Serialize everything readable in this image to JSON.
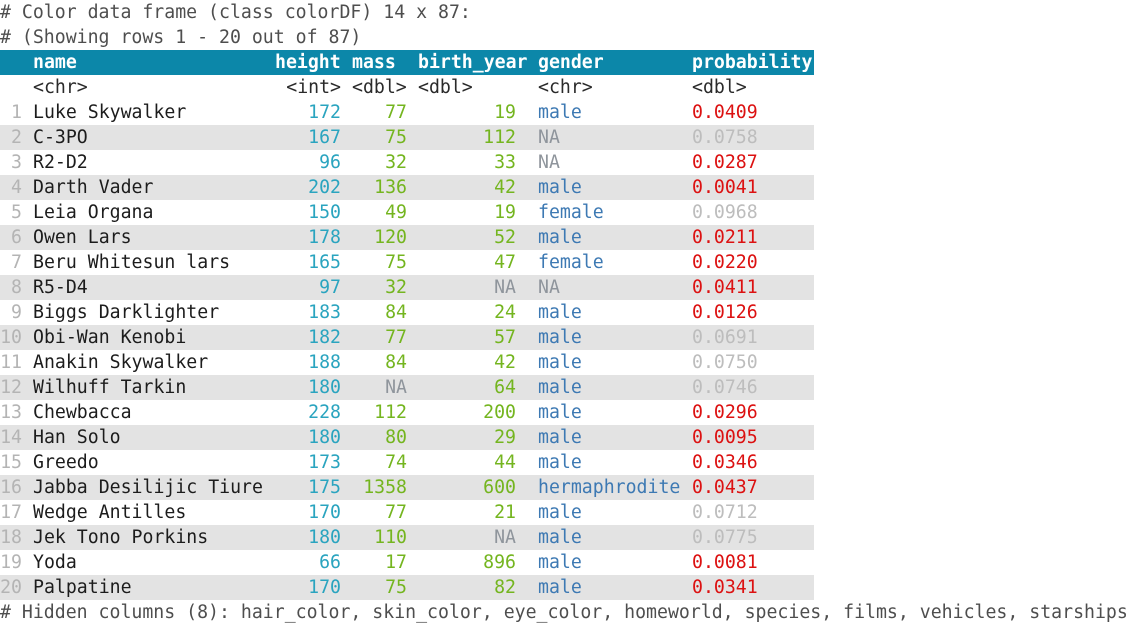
{
  "meta": {
    "line1": "# Color data frame (class colorDF) 14 x 87:",
    "line2": "# (Showing rows 1 - 20 out of 87)",
    "footer": "# Hidden columns (8): hair_color, skin_color, eye_color, homeworld, species, films, vehicles, starships"
  },
  "colors": {
    "header_bg": "#0c87a9",
    "int_teal": "#2aa4bf",
    "dbl_green": "#74b51f",
    "chr_blue": "#3d79b3",
    "sig_red": "#dc1111",
    "nonsig_gray": "#bdbdbd",
    "na_gray": "#8f959c",
    "rownum": "#b4b4b4",
    "stripe": "#e3e3e3",
    "comment": "#4e4e4e",
    "text": "#1c1c1c"
  },
  "table": {
    "columns": [
      {
        "key": "num",
        "label": "",
        "type": ""
      },
      {
        "key": "name",
        "label": "name",
        "type": "<chr>"
      },
      {
        "key": "height",
        "label": "height",
        "type": "<int>"
      },
      {
        "key": "mass",
        "label": "mass",
        "type": "<dbl>"
      },
      {
        "key": "birth_year",
        "label": "birth_year",
        "type": "<dbl>"
      },
      {
        "key": "gender",
        "label": "gender",
        "type": "<chr>"
      },
      {
        "key": "probability",
        "label": "probability",
        "type": "<dbl>"
      }
    ],
    "rows": [
      {
        "num": "1",
        "name": "Luke Skywalker",
        "height": "172",
        "mass": "77",
        "birth_year": "19",
        "gender": "male",
        "probability": "0.0409",
        "sig": true
      },
      {
        "num": "2",
        "name": "C-3PO",
        "height": "167",
        "mass": "75",
        "birth_year": "112",
        "gender": "NA",
        "probability": "0.0758",
        "sig": false
      },
      {
        "num": "3",
        "name": "R2-D2",
        "height": "96",
        "mass": "32",
        "birth_year": "33",
        "gender": "NA",
        "probability": "0.0287",
        "sig": true
      },
      {
        "num": "4",
        "name": "Darth Vader",
        "height": "202",
        "mass": "136",
        "birth_year": "42",
        "gender": "male",
        "probability": "0.0041",
        "sig": true
      },
      {
        "num": "5",
        "name": "Leia Organa",
        "height": "150",
        "mass": "49",
        "birth_year": "19",
        "gender": "female",
        "probability": "0.0968",
        "sig": false
      },
      {
        "num": "6",
        "name": "Owen Lars",
        "height": "178",
        "mass": "120",
        "birth_year": "52",
        "gender": "male",
        "probability": "0.0211",
        "sig": true
      },
      {
        "num": "7",
        "name": "Beru Whitesun lars",
        "height": "165",
        "mass": "75",
        "birth_year": "47",
        "gender": "female",
        "probability": "0.0220",
        "sig": true
      },
      {
        "num": "8",
        "name": "R5-D4",
        "height": "97",
        "mass": "32",
        "birth_year": "NA",
        "gender": "NA",
        "probability": "0.0411",
        "sig": true
      },
      {
        "num": "9",
        "name": "Biggs Darklighter",
        "height": "183",
        "mass": "84",
        "birth_year": "24",
        "gender": "male",
        "probability": "0.0126",
        "sig": true
      },
      {
        "num": "10",
        "name": "Obi-Wan Kenobi",
        "height": "182",
        "mass": "77",
        "birth_year": "57",
        "gender": "male",
        "probability": "0.0691",
        "sig": false
      },
      {
        "num": "11",
        "name": "Anakin Skywalker",
        "height": "188",
        "mass": "84",
        "birth_year": "42",
        "gender": "male",
        "probability": "0.0750",
        "sig": false
      },
      {
        "num": "12",
        "name": "Wilhuff Tarkin",
        "height": "180",
        "mass": "NA",
        "birth_year": "64",
        "gender": "male",
        "probability": "0.0746",
        "sig": false
      },
      {
        "num": "13",
        "name": "Chewbacca",
        "height": "228",
        "mass": "112",
        "birth_year": "200",
        "gender": "male",
        "probability": "0.0296",
        "sig": true
      },
      {
        "num": "14",
        "name": "Han Solo",
        "height": "180",
        "mass": "80",
        "birth_year": "29",
        "gender": "male",
        "probability": "0.0095",
        "sig": true
      },
      {
        "num": "15",
        "name": "Greedo",
        "height": "173",
        "mass": "74",
        "birth_year": "44",
        "gender": "male",
        "probability": "0.0346",
        "sig": true
      },
      {
        "num": "16",
        "name": "Jabba Desilijic Tiure",
        "height": "175",
        "mass": "1358",
        "birth_year": "600",
        "gender": "hermaphrodite",
        "probability": "0.0437",
        "sig": true
      },
      {
        "num": "17",
        "name": "Wedge Antilles",
        "height": "170",
        "mass": "77",
        "birth_year": "21",
        "gender": "male",
        "probability": "0.0712",
        "sig": false
      },
      {
        "num": "18",
        "name": "Jek Tono Porkins",
        "height": "180",
        "mass": "110",
        "birth_year": "NA",
        "gender": "male",
        "probability": "0.0775",
        "sig": false
      },
      {
        "num": "19",
        "name": "Yoda",
        "height": "66",
        "mass": "17",
        "birth_year": "896",
        "gender": "male",
        "probability": "0.0081",
        "sig": true
      },
      {
        "num": "20",
        "name": "Palpatine",
        "height": "170",
        "mass": "75",
        "birth_year": "82",
        "gender": "male",
        "probability": "0.0341",
        "sig": true
      }
    ]
  }
}
